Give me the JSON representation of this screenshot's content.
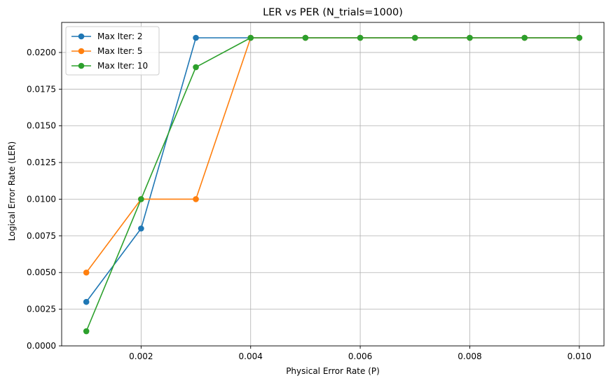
{
  "chart_data": {
    "type": "line",
    "title": "LER vs PER (N_trials=1000)",
    "xlabel": "Physical Error Rate (P)",
    "ylabel": "Logical Error Rate (LER)",
    "xlim": [
      0.00055,
      0.01045
    ],
    "ylim": [
      0,
      0.02205
    ],
    "xticks": [
      0.002,
      0.004,
      0.006,
      0.008,
      0.01
    ],
    "xtick_labels": [
      "0.002",
      "0.004",
      "0.006",
      "0.008",
      "0.010"
    ],
    "yticks": [
      0,
      0.0025,
      0.005,
      0.0075,
      0.01,
      0.0125,
      0.015,
      0.0175,
      0.02
    ],
    "ytick_labels": [
      "0.0000",
      "0.0025",
      "0.0050",
      "0.0075",
      "0.0100",
      "0.0125",
      "0.0150",
      "0.0175",
      "0.0200"
    ],
    "grid": true,
    "legend": "top-left",
    "x": [
      0.001,
      0.002,
      0.003,
      0.004,
      0.005,
      0.006,
      0.007,
      0.008,
      0.009,
      0.01
    ],
    "series": [
      {
        "name": "Max Iter: 2",
        "color": "#1f77b4",
        "values": [
          0.003,
          0.008,
          0.021,
          0.021,
          0.021,
          0.021,
          0.021,
          0.021,
          0.021,
          0.021
        ]
      },
      {
        "name": "Max Iter: 5",
        "color": "#ff7f0e",
        "values": [
          0.005,
          0.01,
          0.01,
          0.021,
          0.021,
          0.021,
          0.021,
          0.021,
          0.021,
          0.021
        ]
      },
      {
        "name": "Max Iter: 10",
        "color": "#2ca02c",
        "values": [
          0.001,
          0.01,
          0.019,
          0.021,
          0.021,
          0.021,
          0.021,
          0.021,
          0.021,
          0.021
        ]
      }
    ]
  }
}
